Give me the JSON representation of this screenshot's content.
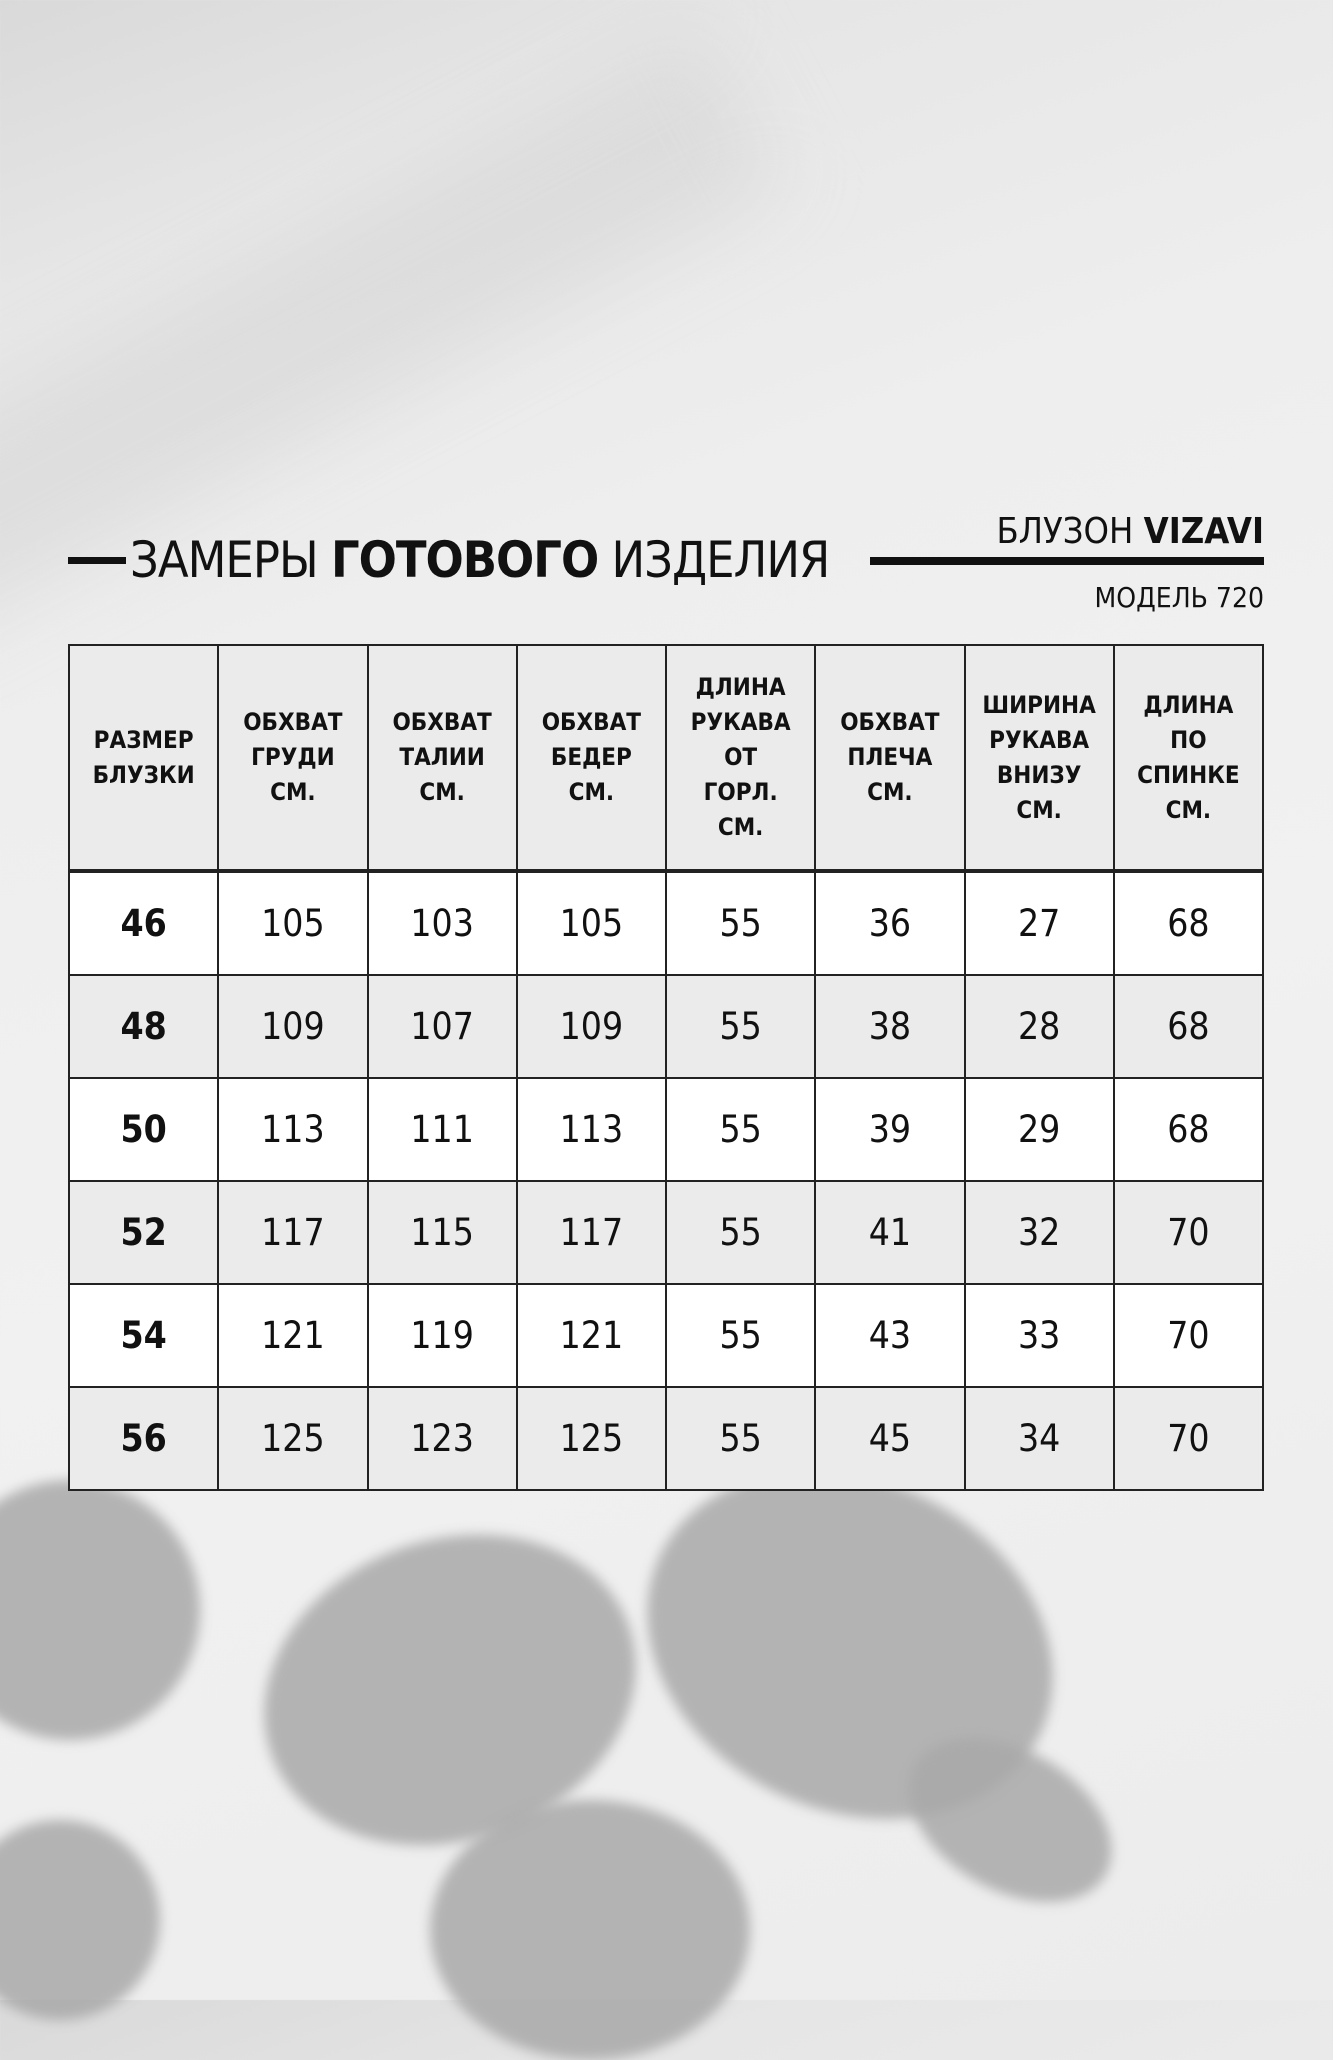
{
  "header": {
    "title_prefix": "ЗАМЕРЫ",
    "title_bold": "ГОТОВОГО",
    "title_suffix": "ИЗДЕЛИЯ",
    "product_type": "БЛУЗОН",
    "brand": "VIZAVI",
    "model": "МОДЕЛЬ 720"
  },
  "table": {
    "columns": [
      [
        "РАЗМЕР",
        "БЛУЗКИ"
      ],
      [
        "ОБХВАТ",
        "ГРУДИ",
        "СМ."
      ],
      [
        "ОБХВАТ",
        "ТАЛИИ",
        "СМ."
      ],
      [
        "ОБХВАТ",
        "БЕДЕР",
        "СМ."
      ],
      [
        "ДЛИНА",
        "РУКАВА",
        "ОТ",
        "ГОРЛ.",
        "СМ."
      ],
      [
        "ОБХВАТ",
        "ПЛЕЧА",
        "СМ."
      ],
      [
        "ШИРИНА",
        "РУКАВА",
        "ВНИЗУ",
        "СМ."
      ],
      [
        "ДЛИНА",
        "ПО",
        "СПИНКЕ",
        "СМ."
      ]
    ],
    "rows": [
      [
        "46",
        "105",
        "103",
        "105",
        "55",
        "36",
        "27",
        "68"
      ],
      [
        "48",
        "109",
        "107",
        "109",
        "55",
        "38",
        "28",
        "68"
      ],
      [
        "50",
        "113",
        "111",
        "113",
        "55",
        "39",
        "29",
        "68"
      ],
      [
        "52",
        "117",
        "115",
        "117",
        "55",
        "41",
        "32",
        "70"
      ],
      [
        "54",
        "121",
        "119",
        "121",
        "55",
        "43",
        "33",
        "70"
      ],
      [
        "56",
        "125",
        "123",
        "125",
        "55",
        "45",
        "34",
        "70"
      ]
    ]
  },
  "colors": {
    "text": "#111111",
    "header_bg": "#ebebeb",
    "row_alt_bg": "#ebebeb",
    "row_bg": "#ffffff"
  }
}
